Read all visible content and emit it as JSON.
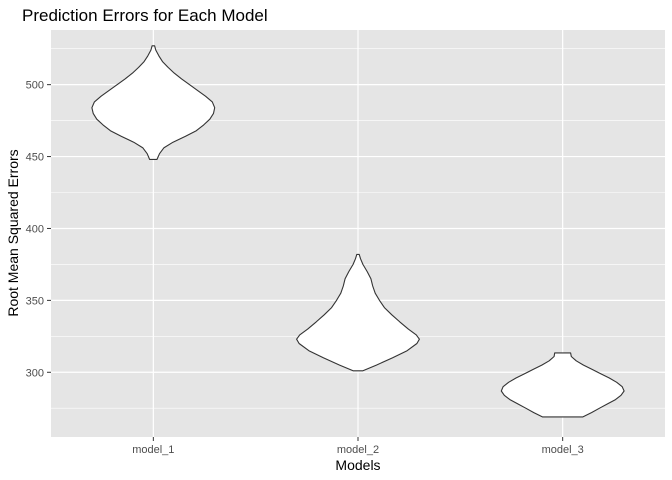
{
  "chart_data": {
    "type": "violin",
    "title": "Prediction Errors for Each Model",
    "xlabel": "Models",
    "ylabel": "Root Mean Squared Errors",
    "categories": [
      "model_1",
      "model_2",
      "model_3"
    ],
    "ylim": [
      255,
      538
    ],
    "yticks": [
      300,
      350,
      400,
      450,
      500
    ],
    "ytick_labels": [
      "300",
      "350",
      "400",
      "450",
      "500"
    ],
    "grid": true,
    "panel_color": "#e5e5e5",
    "violin_fill": "#ffffff",
    "violin_stroke": "#333333",
    "violins": [
      {
        "category": "model_1",
        "profile": [
          [
            448,
            0.06
          ],
          [
            452,
            0.1
          ],
          [
            456,
            0.17
          ],
          [
            460,
            0.32
          ],
          [
            464,
            0.52
          ],
          [
            468,
            0.7
          ],
          [
            472,
            0.82
          ],
          [
            476,
            0.92
          ],
          [
            480,
            0.98
          ],
          [
            484,
            1.0
          ],
          [
            488,
            0.96
          ],
          [
            492,
            0.85
          ],
          [
            496,
            0.72
          ],
          [
            500,
            0.59
          ],
          [
            504,
            0.46
          ],
          [
            508,
            0.34
          ],
          [
            512,
            0.24
          ],
          [
            516,
            0.15
          ],
          [
            520,
            0.09
          ],
          [
            524,
            0.04
          ],
          [
            527,
            0.02
          ]
        ]
      },
      {
        "category": "model_2",
        "profile": [
          [
            301,
            0.08
          ],
          [
            305,
            0.3
          ],
          [
            310,
            0.56
          ],
          [
            315,
            0.8
          ],
          [
            320,
            0.96
          ],
          [
            323,
            1.0
          ],
          [
            326,
            0.95
          ],
          [
            330,
            0.82
          ],
          [
            335,
            0.68
          ],
          [
            340,
            0.55
          ],
          [
            345,
            0.43
          ],
          [
            350,
            0.35
          ],
          [
            355,
            0.28
          ],
          [
            360,
            0.24
          ],
          [
            365,
            0.21
          ],
          [
            370,
            0.15
          ],
          [
            375,
            0.08
          ],
          [
            379,
            0.04
          ],
          [
            382,
            0.02
          ]
        ]
      },
      {
        "category": "model_3",
        "profile": [
          [
            269,
            0.33
          ],
          [
            272,
            0.47
          ],
          [
            275,
            0.6
          ],
          [
            278,
            0.73
          ],
          [
            281,
            0.86
          ],
          [
            284,
            0.95
          ],
          [
            287,
            1.0
          ],
          [
            290,
            0.97
          ],
          [
            293,
            0.88
          ],
          [
            296,
            0.76
          ],
          [
            299,
            0.62
          ],
          [
            302,
            0.48
          ],
          [
            305,
            0.34
          ],
          [
            308,
            0.22
          ],
          [
            311,
            0.14
          ],
          [
            313.5,
            0.13
          ]
        ]
      }
    ]
  }
}
